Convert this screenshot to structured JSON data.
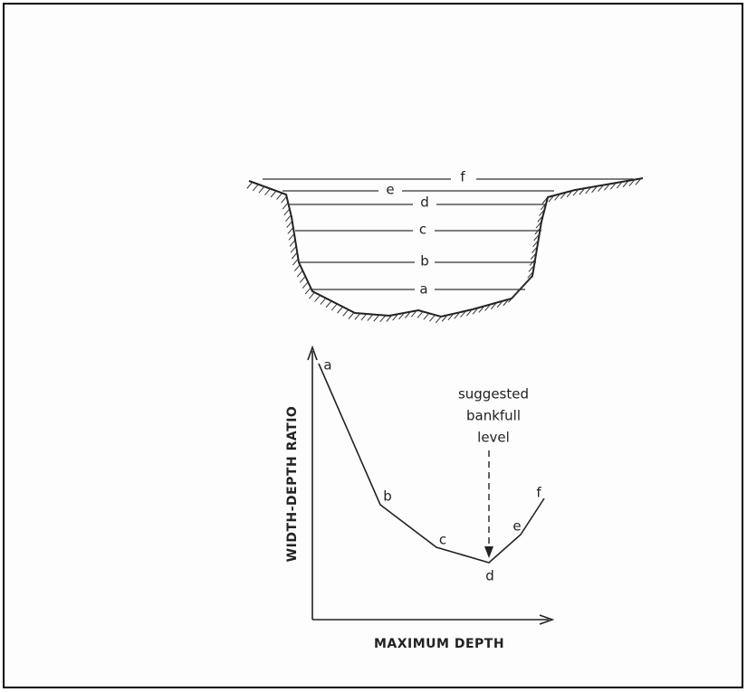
{
  "cross_section": {
    "levels": [
      "a",
      "b",
      "c",
      "d",
      "e",
      "f"
    ]
  },
  "graph": {
    "y_label": "WIDTH-DEPTH RATIO",
    "x_label": "MAXIMUM DEPTH",
    "points": [
      "a",
      "b",
      "c",
      "d",
      "e",
      "f"
    ],
    "annotation": [
      "suggested",
      "bankfull",
      "level"
    ]
  }
}
